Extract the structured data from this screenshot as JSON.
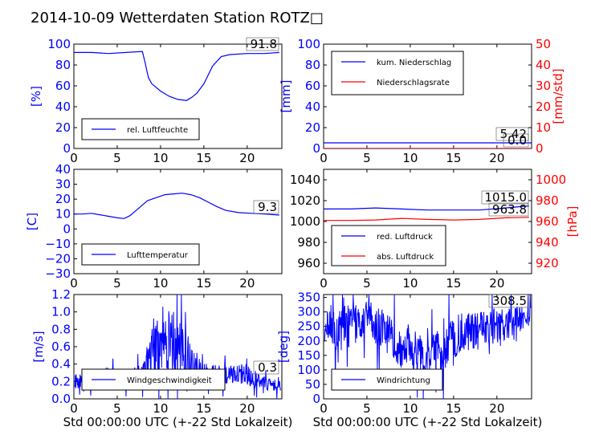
{
  "title": "2014-10-09 Wetterdaten Station ROTZ□",
  "colors": {
    "blue": "#0000ff",
    "red": "#ff0000",
    "light_blue": "#8080ff"
  },
  "chart_data": [
    {
      "id": "humidity",
      "type": "line",
      "ylabel": "[%]",
      "xlabel": "",
      "xlim": [
        0,
        24
      ],
      "ylim": [
        0,
        100
      ],
      "yticks": [
        "0",
        "20",
        "40",
        "60",
        "80",
        "100"
      ],
      "xticks": [
        "0",
        "5",
        "10",
        "15",
        "20"
      ],
      "legend": [
        "rel. Luftfeuchte"
      ],
      "legend_position": "lower-left",
      "annotation": "91.8",
      "series": [
        {
          "name": "rel. Luftfeuchte",
          "color": "blue",
          "x": [
            0,
            2,
            4,
            6,
            7.9,
            8.2,
            8.6,
            9,
            10,
            11,
            12,
            13,
            13.6,
            14.2,
            15,
            16,
            17,
            18,
            20,
            22,
            23.7
          ],
          "y": [
            92,
            92,
            91,
            92,
            93,
            83,
            68,
            62,
            55,
            50,
            47,
            46,
            49,
            53,
            62,
            79,
            88,
            90,
            91,
            91,
            92
          ]
        }
      ]
    },
    {
      "id": "precip",
      "type": "line",
      "ylabel": "[mm]",
      "y2label": "[mm/std]",
      "xlim": [
        0,
        24
      ],
      "ylim": [
        0,
        100
      ],
      "y2lim": [
        0,
        50
      ],
      "yticks": [
        "0",
        "20",
        "40",
        "60",
        "80",
        "100"
      ],
      "y2ticks": [
        "0",
        "10",
        "20",
        "30",
        "40",
        "50"
      ],
      "xticks": [
        "0",
        "5",
        "10",
        "15",
        "20"
      ],
      "legend": [
        "kum. Niederschlag",
        "Niederschlagsrate"
      ],
      "legend_position": "upper-left",
      "annotations": [
        "5.42",
        "0.0"
      ],
      "series": [
        {
          "name": "kum. Niederschlag",
          "color": "blue",
          "axis": "left",
          "x": [
            0,
            24
          ],
          "y": [
            5.42,
            5.42
          ]
        },
        {
          "name": "Niederschlagsrate",
          "color": "red",
          "axis": "right",
          "x": [
            0,
            24
          ],
          "y": [
            0,
            0
          ]
        }
      ]
    },
    {
      "id": "temperature",
      "type": "line",
      "ylabel": "[C]",
      "xlim": [
        0,
        24
      ],
      "ylim": [
        -30,
        40
      ],
      "yticks": [
        "−30",
        "−20",
        "−10",
        "0",
        "10",
        "20",
        "30",
        "40"
      ],
      "xticks": [
        "0",
        "5",
        "10",
        "15",
        "20"
      ],
      "legend": [
        "Lufttemperatur"
      ],
      "legend_position": "lower-left",
      "annotation": "9.3",
      "series": [
        {
          "name": "Lufttemperatur",
          "color": "blue",
          "x": [
            0,
            1,
            2,
            3,
            4,
            5,
            5.8,
            6.5,
            7.5,
            8.5,
            9.5,
            10.5,
            11.5,
            12.5,
            13.5,
            14.5,
            15.5,
            16.5,
            17.5,
            19,
            20.5,
            22,
            23.7
          ],
          "y": [
            10,
            10,
            10.5,
            9.5,
            8.5,
            7.5,
            7,
            9,
            14,
            19,
            21,
            23,
            23.5,
            24,
            23,
            21,
            18,
            15,
            12.5,
            11,
            10.5,
            10,
            9.3
          ]
        }
      ]
    },
    {
      "id": "pressure",
      "type": "line",
      "ylabel": "",
      "y2label": "[hPa]",
      "xlim": [
        0,
        24
      ],
      "ylim": [
        950,
        1050
      ],
      "y2lim": [
        910,
        1010
      ],
      "yticks": [
        "960",
        "980",
        "1000",
        "1020",
        "1040"
      ],
      "y2ticks": [
        "920",
        "940",
        "960",
        "980",
        "1000"
      ],
      "xticks": [
        "0",
        "5",
        "10",
        "15",
        "20"
      ],
      "legend": [
        "red. Luftdruck",
        "abs. Luftdruck"
      ],
      "legend_position": "lower-left",
      "annotations": [
        "1015.0",
        "963.8"
      ],
      "series": [
        {
          "name": "red. Luftdruck",
          "color": "blue",
          "axis": "left",
          "x": [
            0,
            3,
            6,
            9,
            12,
            15,
            18,
            21,
            23.7
          ],
          "y": [
            1012,
            1012,
            1013,
            1012,
            1011,
            1011,
            1011,
            1013,
            1015
          ]
        },
        {
          "name": "abs. Luftdruck",
          "color": "red",
          "axis": "left",
          "x": [
            0,
            3,
            6,
            9,
            12,
            15,
            18,
            21,
            23.7
          ],
          "y": [
            1001,
            1001,
            1001.5,
            1003,
            1002,
            1001.5,
            1002,
            1003.5,
            1004
          ]
        }
      ]
    },
    {
      "id": "windspeed",
      "type": "line",
      "ylabel": "[m/s]",
      "xlim": [
        0,
        24
      ],
      "ylim": [
        0,
        1.2
      ],
      "yticks": [
        "0.0",
        "0.2",
        "0.4",
        "0.6",
        "0.8",
        "1.0",
        "1.2"
      ],
      "xticks": [
        "0",
        "5",
        "10",
        "15",
        "20"
      ],
      "xlabel": "Std 00:00:00 UTC (+-22 Std Lokalzeit)",
      "legend": [
        "Windgeschwindigkeit"
      ],
      "legend_position": "lower-left",
      "annotation": "0.3",
      "series": [
        {
          "name": "Windgeschwindigkeit",
          "color": "blue",
          "noisy": true,
          "x": [
            0,
            2,
            4,
            6,
            8,
            9,
            10,
            11,
            12,
            13,
            14,
            15,
            16,
            17,
            18,
            19,
            20,
            21,
            22,
            23.7
          ],
          "y": [
            0.2,
            0.22,
            0.25,
            0.22,
            0.3,
            0.55,
            0.6,
            0.65,
            0.6,
            0.5,
            0.35,
            0.3,
            0.28,
            0.28,
            0.28,
            0.3,
            0.28,
            0.22,
            0.18,
            0.15
          ],
          "amp": [
            0.08,
            0.1,
            0.12,
            0.1,
            0.12,
            0.3,
            0.35,
            0.4,
            0.38,
            0.3,
            0.2,
            0.15,
            0.12,
            0.1,
            0.1,
            0.12,
            0.12,
            0.1,
            0.08,
            0.06
          ]
        }
      ]
    },
    {
      "id": "winddir",
      "type": "line",
      "ylabel": "[deg]",
      "xlim": [
        0,
        24
      ],
      "ylim": [
        0,
        360
      ],
      "yticks": [
        "0",
        "50",
        "100",
        "150",
        "200",
        "250",
        "300",
        "350"
      ],
      "xticks": [
        "0",
        "5",
        "10",
        "15",
        "20"
      ],
      "xlabel": "Std 00:00:00 UTC (+-22 Std Lokalzeit)",
      "legend": [
        "Windrichtung"
      ],
      "legend_position": "lower-left",
      "annotation": "308.5",
      "series": [
        {
          "name": "Windrichtung",
          "color": "blue",
          "noisy": true,
          "x": [
            0,
            2,
            4,
            5,
            6,
            7,
            8,
            9,
            10,
            11,
            12,
            13,
            14,
            15,
            16,
            17,
            18,
            19,
            20,
            21,
            22,
            23.7
          ],
          "y": [
            250,
            240,
            260,
            290,
            260,
            240,
            200,
            170,
            180,
            150,
            160,
            160,
            180,
            210,
            230,
            230,
            240,
            250,
            250,
            260,
            270,
            290
          ],
          "amp": [
            60,
            80,
            70,
            50,
            70,
            70,
            70,
            70,
            70,
            70,
            60,
            70,
            80,
            70,
            70,
            70,
            70,
            70,
            60,
            60,
            50,
            40
          ]
        }
      ]
    }
  ]
}
